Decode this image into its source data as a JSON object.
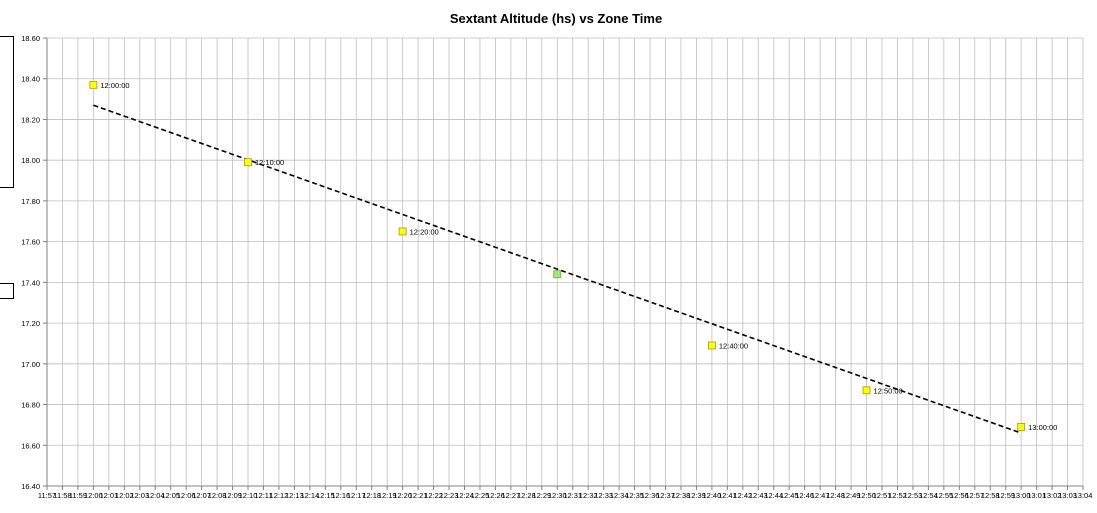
{
  "chart_data": {
    "type": "scatter",
    "title": "Sextant Altitude (hs)  vs  Zone Time",
    "xlabel": "",
    "ylabel": "",
    "ylim": [
      16.4,
      18.6
    ],
    "xlim": [
      "11:57",
      "13:04"
    ],
    "y_ticks": [
      "16.40",
      "16.60",
      "16.80",
      "17.00",
      "17.20",
      "17.40",
      "17.60",
      "17.80",
      "18.00",
      "18.20",
      "18.40",
      "18.60"
    ],
    "x_ticks": [
      "11:57",
      "11:58",
      "11:59",
      "12:00",
      "12:01",
      "12:02",
      "12:03",
      "12:04",
      "12:05",
      "12:06",
      "12:07",
      "12:08",
      "12:09",
      "12:10",
      "12:11",
      "12:12",
      "12:13",
      "12:14",
      "12:15",
      "12:16",
      "12:17",
      "12:18",
      "12:19",
      "12:20",
      "12:21",
      "12:22",
      "12:23",
      "12:24",
      "12:25",
      "12:26",
      "12:27",
      "12:28",
      "12:29",
      "12:30",
      "12:31",
      "12:32",
      "12:33",
      "12:34",
      "12:35",
      "12:36",
      "12:37",
      "12:38",
      "12:39",
      "12:40",
      "12:41",
      "12:42",
      "12:43",
      "12:44",
      "12:45",
      "12:46",
      "12:47",
      "12:48",
      "12:49",
      "12:50",
      "12:51",
      "12:52",
      "12:53",
      "12:54",
      "12:55",
      "12:56",
      "12:57",
      "12:58",
      "12:59",
      "13:00",
      "13:01",
      "13:02",
      "13:03",
      "13:04"
    ],
    "grid": true,
    "legend": "none",
    "series": [
      {
        "points": [
          {
            "x": "12:00:00",
            "y": 18.37,
            "label": "12:00:00",
            "color": "#ffff00"
          },
          {
            "x": "12:10:00",
            "y": 17.99,
            "label": "12:10:00",
            "color": "#ffff00"
          },
          {
            "x": "12:20:00",
            "y": 17.65,
            "label": "12:20:00",
            "color": "#ffff00"
          },
          {
            "x": "12:30:00",
            "y": 17.44,
            "label": "",
            "color": "#90ee90"
          },
          {
            "x": "12:40:00",
            "y": 17.09,
            "label": "12:40:00",
            "color": "#ffff00"
          },
          {
            "x": "12:50:00",
            "y": 16.87,
            "label": "12:50:00",
            "color": "#ffff00"
          },
          {
            "x": "13:00:00",
            "y": 16.69,
            "label": "13:00:00",
            "color": "#ffff00"
          }
        ]
      }
    ],
    "trendline": {
      "start": {
        "x": "12:00:00",
        "y": 18.27
      },
      "end": {
        "x": "13:00:00",
        "y": 16.66
      },
      "style": "dashed",
      "color": "#000000"
    },
    "colors": {
      "grid": "#bfbfbf",
      "axis": "#808080",
      "text": "#000000",
      "marker_border": "#a0a000"
    }
  }
}
